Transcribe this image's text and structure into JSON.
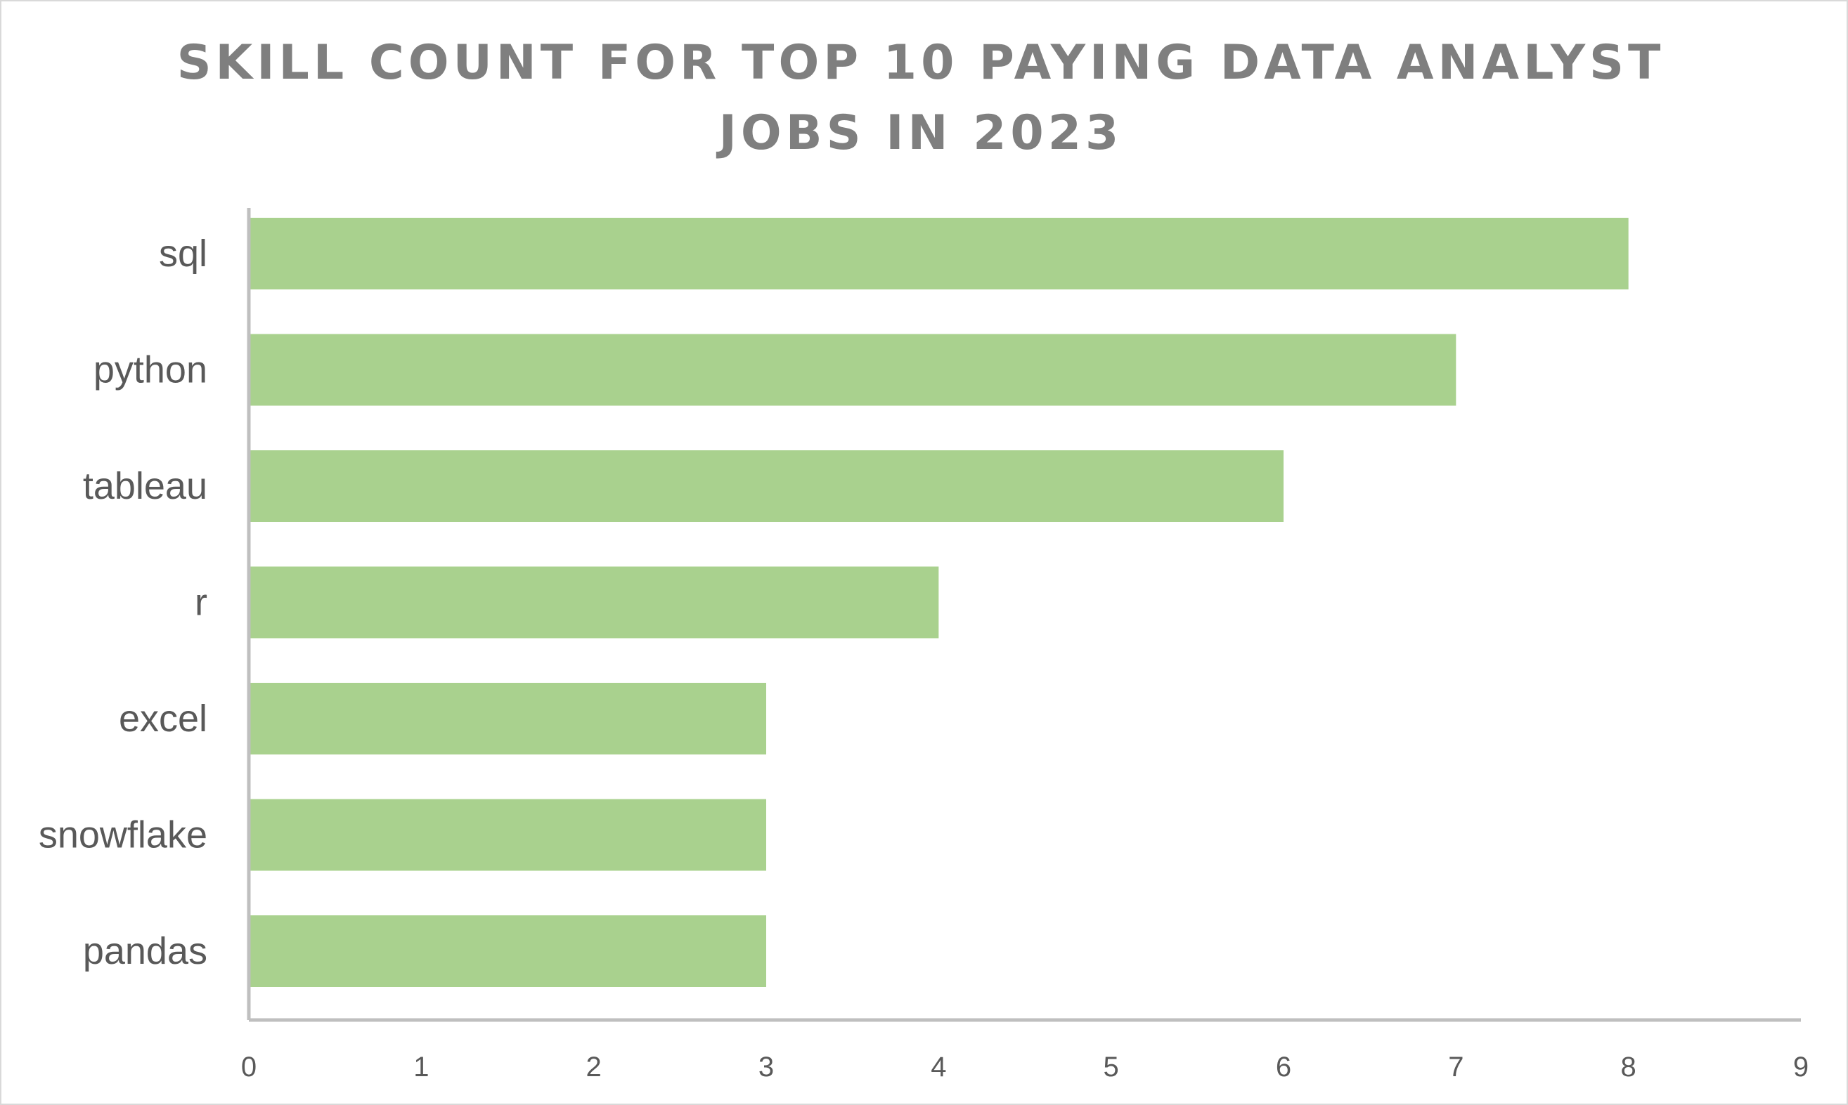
{
  "chart_data": {
    "type": "bar",
    "orientation": "horizontal",
    "title": "SKILL COUNT FOR TOP 10 PAYING DATA ANALYST JOBS IN 2023",
    "categories": [
      "sql",
      "python",
      "tableau",
      "r",
      "excel",
      "snowflake",
      "pandas"
    ],
    "values": [
      8,
      7,
      6,
      4,
      3,
      3,
      3
    ],
    "xlim": [
      0,
      9
    ],
    "xticks": [
      "0",
      "1",
      "2",
      "3",
      "4",
      "5",
      "6",
      "7",
      "8",
      "9"
    ],
    "xlabel": "",
    "ylabel": "",
    "grid": false,
    "legend": "none",
    "bar_color": "#a9d18e",
    "axis_color": "#bfbfbf",
    "text_color": "#595959",
    "title_color": "#7f7f7f"
  }
}
